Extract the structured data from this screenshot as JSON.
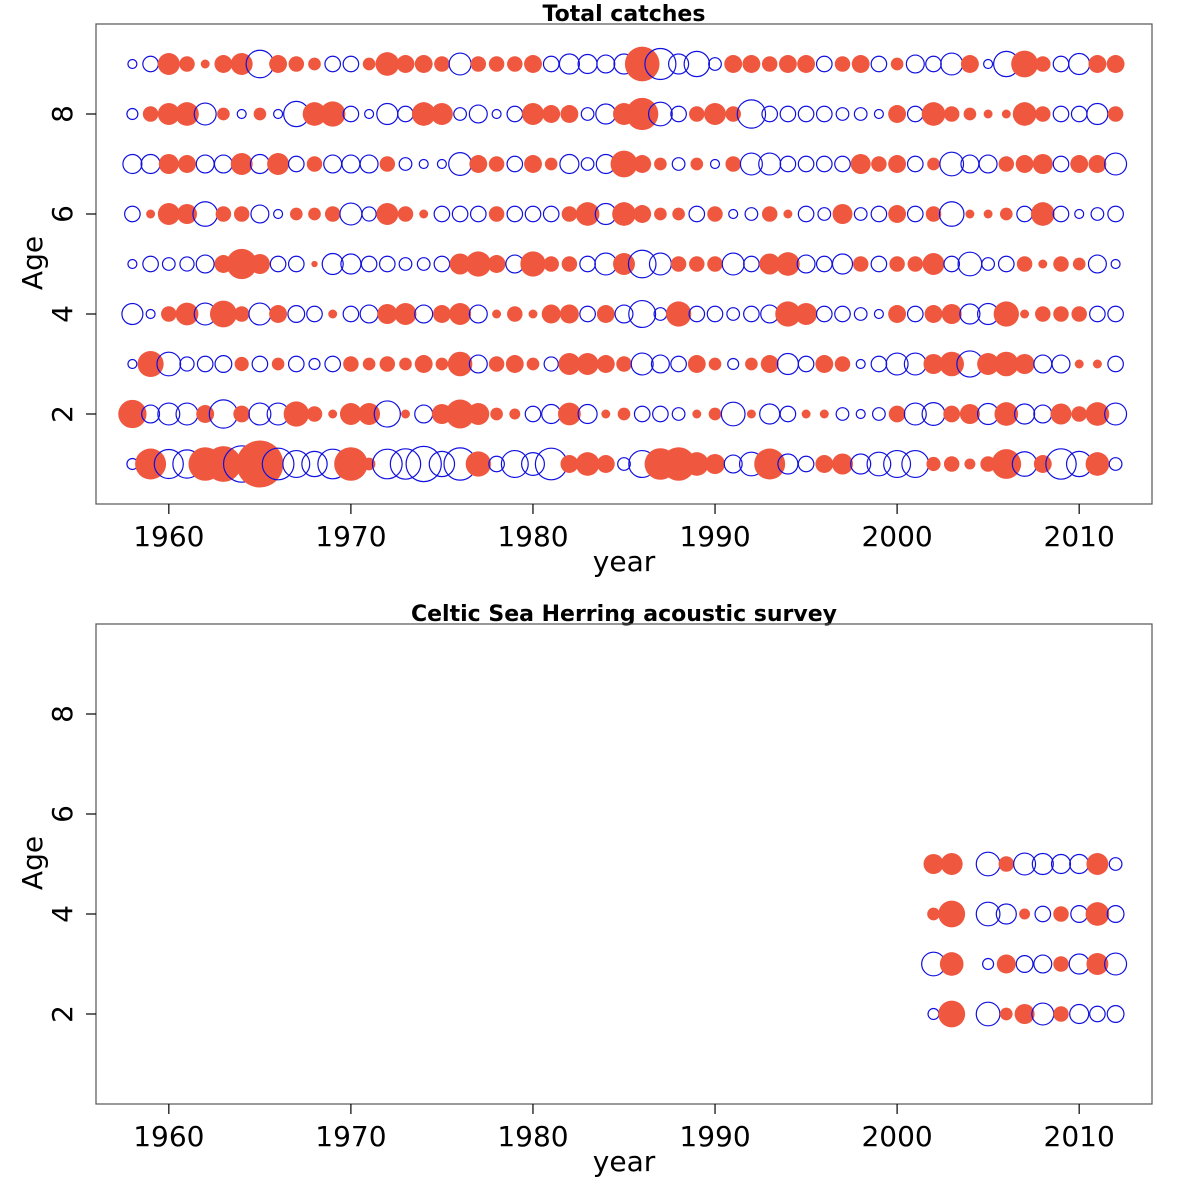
{
  "colors": {
    "positive": "#f0573f",
    "negative": "#1010e0"
  },
  "chart_data": [
    {
      "type": "scatter",
      "subtype": "bubble",
      "title": "Total catches",
      "xlabel": "year",
      "ylabel": "Age",
      "xlim": [
        1956,
        2014
      ],
      "ylim": [
        0.2,
        9.8
      ],
      "xticks": [
        1960,
        1970,
        1980,
        1990,
        2000,
        2010
      ],
      "yticks": [
        2,
        4,
        6,
        8
      ],
      "years": [
        1958,
        1959,
        1960,
        1961,
        1962,
        1963,
        1964,
        1965,
        1966,
        1967,
        1968,
        1969,
        1970,
        1971,
        1972,
        1973,
        1974,
        1975,
        1976,
        1977,
        1978,
        1979,
        1980,
        1981,
        1982,
        1983,
        1984,
        1985,
        1986,
        1987,
        1988,
        1989,
        1990,
        1991,
        1992,
        1993,
        1994,
        1995,
        1996,
        1997,
        1998,
        1999,
        2000,
        2001,
        2002,
        2003,
        2004,
        2005,
        2006,
        2007,
        2008,
        2009,
        2010,
        2011,
        2012
      ],
      "ages": [
        1,
        2,
        3,
        4,
        5,
        6,
        7,
        8,
        9
      ],
      "residuals": [
        [
          -0.3,
          2.4,
          -2.1,
          -2.0,
          2.8,
          3.2,
          -3.3,
          5.5,
          -2.5,
          -1.8,
          -1.6,
          -2.2,
          2.8,
          0.4,
          -2.2,
          -2.3,
          -3.1,
          -1.6,
          -2.6,
          1.6,
          -0.6,
          -1.8,
          -1.3,
          -2.5,
          0.8,
          1.4,
          0.8,
          -0.4,
          -1.8,
          2.5,
          2.8,
          1.4,
          1.0,
          -0.8,
          -1.4,
          2.4,
          -1.0,
          -0.6,
          0.8,
          1.1,
          -1.0,
          -1.4,
          -1.8,
          -1.8,
          0.5,
          0.6,
          0.3,
          0.6,
          2.2,
          -1.5,
          0.8,
          -2.3,
          -1.6,
          1.4,
          -0.4
        ],
        [
          2.0,
          -0.8,
          -1.2,
          -1.2,
          0.8,
          -2.0,
          0.7,
          -1.2,
          -1.2,
          1.6,
          0.6,
          0.2,
          1.2,
          1.2,
          -1.7,
          0.2,
          -0.8,
          1.0,
          2.1,
          1.2,
          0.4,
          0.3,
          -0.6,
          -0.9,
          1.3,
          -0.9,
          0.2,
          0.4,
          -0.6,
          -0.6,
          -0.4,
          0.2,
          0.4,
          -1.4,
          0.2,
          -1.0,
          -0.6,
          0.2,
          0.2,
          -0.4,
          -0.2,
          -0.4,
          0.7,
          -1.2,
          -1.3,
          0.7,
          1.0,
          -1.1,
          1.4,
          -1.0,
          -0.8,
          1.1,
          0.6,
          1.4,
          -1.2
        ],
        [
          -0.2,
          1.7,
          -1.4,
          -0.5,
          -0.6,
          -0.7,
          0.5,
          -0.6,
          0.4,
          -0.6,
          -0.3,
          -0.6,
          0.6,
          0.4,
          0.6,
          0.4,
          0.8,
          0.4,
          1.5,
          -0.8,
          0.6,
          0.8,
          0.4,
          -0.5,
          1.2,
          1.2,
          0.8,
          0.6,
          -1.2,
          -0.8,
          -0.6,
          0.8,
          0.4,
          -0.3,
          0.4,
          0.8,
          -1.1,
          -0.6,
          0.8,
          0.6,
          -0.2,
          -0.6,
          -1.2,
          -1.2,
          1.0,
          1.5,
          -1.7,
          1.2,
          1.5,
          1.0,
          -0.8,
          -0.8,
          0.2,
          0.2,
          -0.6
        ],
        [
          -1.1,
          -0.2,
          0.6,
          1.3,
          -1.2,
          1.8,
          0.6,
          -1.2,
          0.8,
          -0.7,
          -0.6,
          0.2,
          -0.6,
          -0.8,
          1.0,
          1.2,
          -0.8,
          0.8,
          1.2,
          -0.8,
          0.2,
          0.6,
          0.2,
          0.9,
          0.9,
          -0.6,
          0.8,
          -0.8,
          -1.8,
          -0.4,
          1.6,
          -0.6,
          -0.6,
          -0.4,
          -0.6,
          -0.8,
          1.6,
          1.2,
          -0.6,
          -0.6,
          -0.4,
          -0.2,
          0.8,
          -0.6,
          0.8,
          1.0,
          -1.0,
          -1.1,
          1.6,
          0.2,
          0.6,
          0.6,
          0.6,
          -0.6,
          -0.6
        ],
        [
          -0.2,
          -0.6,
          -0.4,
          -0.5,
          -0.8,
          0.8,
          2.3,
          1.0,
          -0.6,
          -0.6,
          0.1,
          -1.1,
          -1.0,
          -0.6,
          -0.6,
          -0.4,
          -0.4,
          -0.6,
          1.1,
          1.6,
          0.8,
          -0.8,
          1.6,
          0.6,
          0.6,
          -0.6,
          -1.2,
          1.2,
          -1.9,
          -1.2,
          0.6,
          0.6,
          0.6,
          -1.2,
          -0.6,
          1.1,
          1.4,
          -0.8,
          -0.6,
          -1.0,
          0.6,
          -0.6,
          0.6,
          0.6,
          1.2,
          -0.6,
          -1.4,
          -0.4,
          -0.6,
          0.6,
          0.2,
          0.6,
          0.4,
          -0.8,
          -0.2
        ],
        [
          -0.6,
          0.2,
          1.2,
          1.0,
          -1.5,
          0.6,
          0.6,
          -0.8,
          -0.2,
          0.4,
          0.4,
          0.6,
          -1.2,
          -0.5,
          1.2,
          0.6,
          0.2,
          -0.6,
          -0.6,
          -0.6,
          0.6,
          -0.6,
          -0.6,
          -0.6,
          0.6,
          1.4,
          -1.1,
          1.4,
          0.8,
          0.4,
          0.4,
          -0.6,
          0.6,
          -0.2,
          -0.4,
          0.6,
          0.2,
          -0.6,
          -0.4,
          1.0,
          -0.4,
          -0.6,
          0.8,
          -0.6,
          0.6,
          -1.5,
          0.2,
          0.2,
          0.4,
          -0.6,
          1.4,
          -0.6,
          -0.2,
          -0.4,
          -0.6
        ],
        [
          -0.9,
          -0.9,
          1.0,
          0.8,
          -0.8,
          -0.8,
          1.2,
          -0.9,
          1.2,
          -0.6,
          0.6,
          -0.8,
          -0.8,
          -0.8,
          0.6,
          -0.4,
          -0.2,
          -0.2,
          -1.3,
          0.8,
          0.6,
          -0.6,
          0.8,
          0.4,
          -0.9,
          -0.4,
          -0.9,
          1.8,
          0.8,
          0.4,
          -0.4,
          0.4,
          -0.2,
          0.6,
          -1.2,
          -1.2,
          -0.6,
          -0.6,
          -0.6,
          -0.6,
          1.0,
          0.6,
          0.8,
          -0.6,
          0.4,
          -1.4,
          -0.8,
          -0.8,
          0.6,
          0.8,
          1.0,
          -0.6,
          0.8,
          0.8,
          -1.2
        ],
        [
          -0.3,
          0.6,
          1.2,
          1.4,
          -1.2,
          0.4,
          -0.2,
          0.4,
          -0.2,
          -1.6,
          1.4,
          1.6,
          -0.6,
          -0.2,
          -1.1,
          -0.6,
          1.4,
          1.2,
          -0.4,
          -0.8,
          -0.2,
          -0.6,
          1.2,
          0.8,
          0.8,
          -0.4,
          -1.0,
          1.2,
          2.6,
          -1.4,
          -0.6,
          0.6,
          1.2,
          0.6,
          -2.0,
          -0.6,
          -0.6,
          -0.6,
          -0.6,
          -0.4,
          -0.4,
          -0.2,
          0.8,
          -0.6,
          1.4,
          0.6,
          0.4,
          0.2,
          0.2,
          1.4,
          0.6,
          -0.6,
          -0.6,
          -1.1,
          0.6
        ],
        [
          -0.2,
          -0.6,
          1.2,
          0.6,
          0.2,
          0.8,
          1.2,
          -1.9,
          0.8,
          0.6,
          0.4,
          -0.6,
          -0.6,
          0.4,
          1.4,
          0.8,
          0.8,
          0.6,
          -1.2,
          0.6,
          0.6,
          0.6,
          0.8,
          -0.6,
          -1.0,
          -0.9,
          -0.8,
          -1.0,
          3.0,
          -2.4,
          -1.0,
          -1.6,
          -0.4,
          0.8,
          0.8,
          0.6,
          0.8,
          0.8,
          -0.6,
          0.6,
          0.8,
          -0.6,
          0.4,
          -0.8,
          -0.6,
          -1.2,
          0.8,
          -0.2,
          -1.6,
          1.8,
          0.6,
          -0.6,
          -1.1,
          0.8,
          0.8
        ]
      ]
    },
    {
      "type": "scatter",
      "subtype": "bubble",
      "title": "Celtic Sea Herring acoustic survey",
      "xlabel": "year",
      "ylabel": "Age",
      "xlim": [
        1956,
        2014
      ],
      "ylim": [
        0.2,
        9.8
      ],
      "xticks": [
        1960,
        1970,
        1980,
        1990,
        2000,
        2010
      ],
      "yticks": [
        2,
        4,
        6,
        8
      ],
      "years": [
        2002,
        2003,
        2004,
        2005,
        2006,
        2007,
        2008,
        2009,
        2010,
        2011,
        2012
      ],
      "ages": [
        2,
        3,
        4,
        5
      ],
      "residuals": [
        [
          -0.3,
          1.8,
          0,
          -1.4,
          0.4,
          1.0,
          -1.2,
          0.6,
          -0.9,
          -0.6,
          -0.7
        ],
        [
          -1.4,
          1.4,
          0,
          -0.3,
          0.9,
          -0.7,
          -0.8,
          0.6,
          -1.0,
          1.2,
          -1.2
        ],
        [
          0.4,
          1.8,
          0,
          -1.4,
          -1.0,
          0.3,
          -0.6,
          0.6,
          -0.7,
          1.4,
          -0.7
        ],
        [
          1.0,
          1.2,
          0,
          -1.4,
          0.6,
          -1.2,
          -1.1,
          -0.9,
          -0.9,
          1.2,
          -0.4
        ]
      ]
    }
  ]
}
